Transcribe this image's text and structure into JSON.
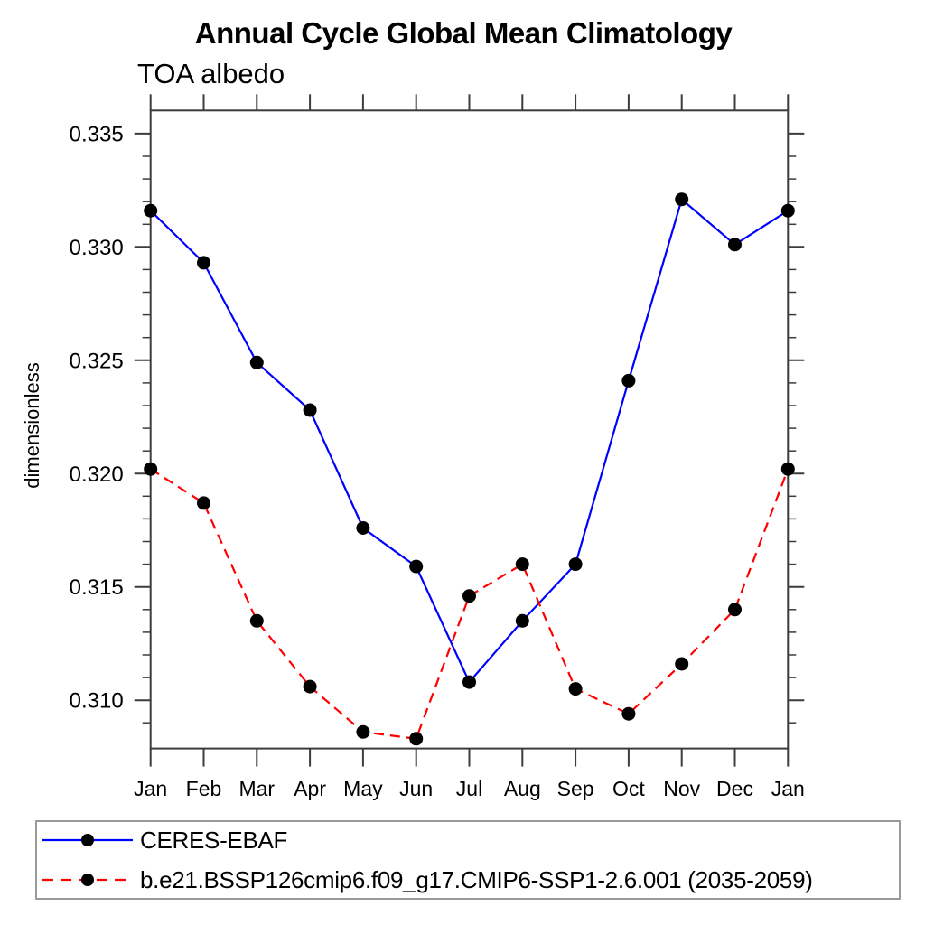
{
  "chart_data": {
    "type": "line",
    "title": "Annual Cycle Global Mean Climatology",
    "subtitle": "TOA albedo",
    "ylabel": "dimensionless",
    "xlabel": "",
    "categories": [
      "Jan",
      "Feb",
      "Mar",
      "Apr",
      "May",
      "Jun",
      "Jul",
      "Aug",
      "Sep",
      "Oct",
      "Nov",
      "Dec",
      "Jan"
    ],
    "ylim": [
      0.30787,
      0.33602
    ],
    "y_major_ticks": [
      0.31,
      0.315,
      0.32,
      0.325,
      0.33,
      0.335
    ],
    "y_tick_labels": [
      "0.310",
      "0.315",
      "0.320",
      "0.325",
      "0.330",
      "0.335"
    ],
    "y_minor_tick_interval": 0.001,
    "grid": false,
    "legend_position": "bottom-left-box",
    "axis_color": "#3c3c3c",
    "background_color": "#ffffff",
    "series": [
      {
        "name": "CERES-EBAF",
        "color": "#0000ff",
        "line_style": "solid",
        "marker": "filled-circle",
        "marker_color": "#000000",
        "values": [
          0.3316,
          0.3293,
          0.3249,
          0.3228,
          0.3176,
          0.3159,
          0.3108,
          0.3135,
          0.316,
          0.3241,
          0.3321,
          0.3301,
          0.3316
        ]
      },
      {
        "name": "b.e21.BSSP126cmip6.f09_g17.CMIP6-SSP1-2.6.001 (2035-2059)",
        "color": "#ff0000",
        "line_style": "dashed",
        "marker": "filled-circle",
        "marker_color": "#000000",
        "values": [
          0.3202,
          0.3187,
          0.3135,
          0.3106,
          0.3086,
          0.3083,
          0.3146,
          0.316,
          0.3105,
          0.3094,
          0.3116,
          0.314,
          0.3202
        ]
      }
    ]
  }
}
